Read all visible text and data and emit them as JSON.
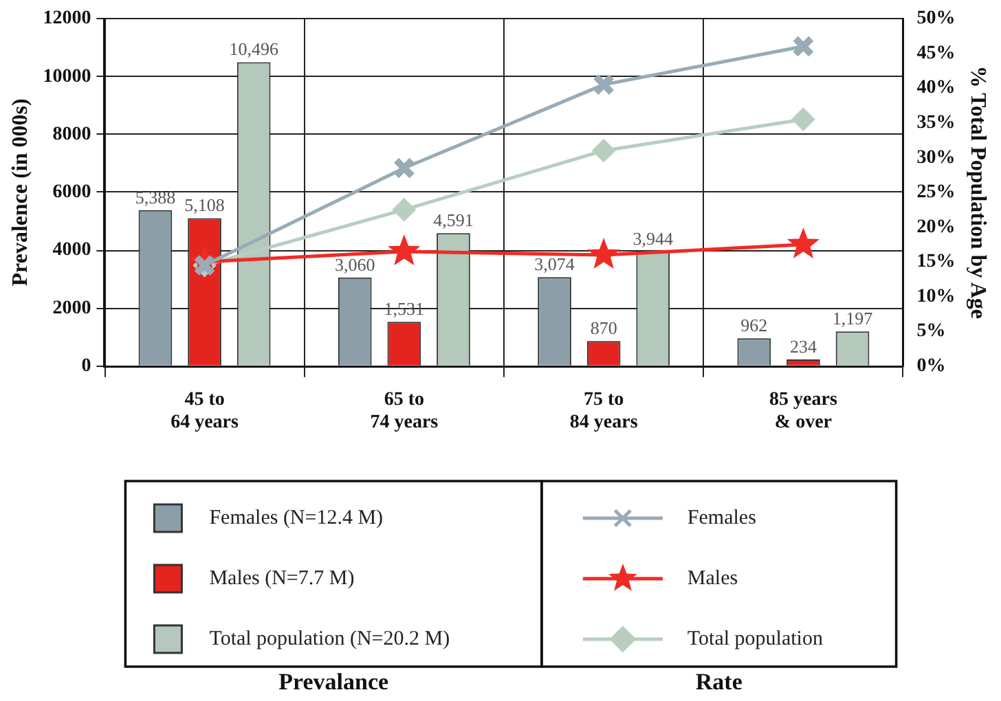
{
  "chart_data": {
    "type": "bar",
    "ylabel": "Prevalence (in 000s)",
    "y2label": "% Total Population by Age",
    "categories": [
      "45 to 64 years",
      "65 to 74 years",
      "75 to 84 years",
      "85 years & over"
    ],
    "series": [
      {
        "name": "Females (N=12.4 M)",
        "color": "#8c9fa9",
        "values": [
          5388,
          3060,
          3074,
          962
        ],
        "value_labels": [
          "5,388",
          "3,060",
          "3,074",
          "962"
        ]
      },
      {
        "name": "Males (N=7.7 M)",
        "color": "#e3241f",
        "values": [
          5108,
          1531,
          870,
          234
        ],
        "value_labels": [
          "5,108",
          "1,531",
          "870",
          "234"
        ]
      },
      {
        "name": "Total population (N=20.2 M)",
        "color": "#b4c8bb",
        "values": [
          10496,
          4591,
          3944,
          1197
        ],
        "value_labels": [
          "10,496",
          "4,591",
          "3,944",
          "1,197"
        ]
      },
      {
        "name": "Females",
        "type": "line",
        "axis": "y2",
        "color": "#98abb7",
        "marker": "cross",
        "values": [
          14.5,
          28.5,
          40.5,
          46
        ]
      },
      {
        "name": "Males",
        "type": "line",
        "axis": "y2",
        "color": "#ef2b25",
        "marker": "star",
        "values": [
          15,
          16.5,
          16,
          17.5
        ]
      },
      {
        "name": "Total population",
        "type": "line",
        "axis": "y2",
        "color": "#b8cfc0",
        "marker": "diamond",
        "values": [
          14.5,
          22.5,
          31,
          35.5
        ]
      }
    ],
    "ylim": [
      0,
      12000
    ],
    "yticks": [
      0,
      2000,
      4000,
      6000,
      8000,
      10000,
      12000
    ],
    "y2lim": [
      0,
      50
    ],
    "y2ticks": [
      {
        "value": 0,
        "label": "0%"
      },
      {
        "value": 5,
        "label": "5%"
      },
      {
        "value": 10,
        "label": "10%"
      },
      {
        "value": 15,
        "label": "15%"
      },
      {
        "value": 20,
        "label": "20%"
      },
      {
        "value": 25,
        "label": "25%"
      },
      {
        "value": 30,
        "label": "30%"
      },
      {
        "value": 35,
        "label": "35%"
      },
      {
        "value": 40,
        "label": "40%"
      },
      {
        "value": 45,
        "label": "45%"
      },
      {
        "value": 50,
        "label": "50%"
      }
    ],
    "grid": true,
    "legend": "bottom",
    "annotations": [
      "Prevalance",
      "Rate"
    ]
  }
}
